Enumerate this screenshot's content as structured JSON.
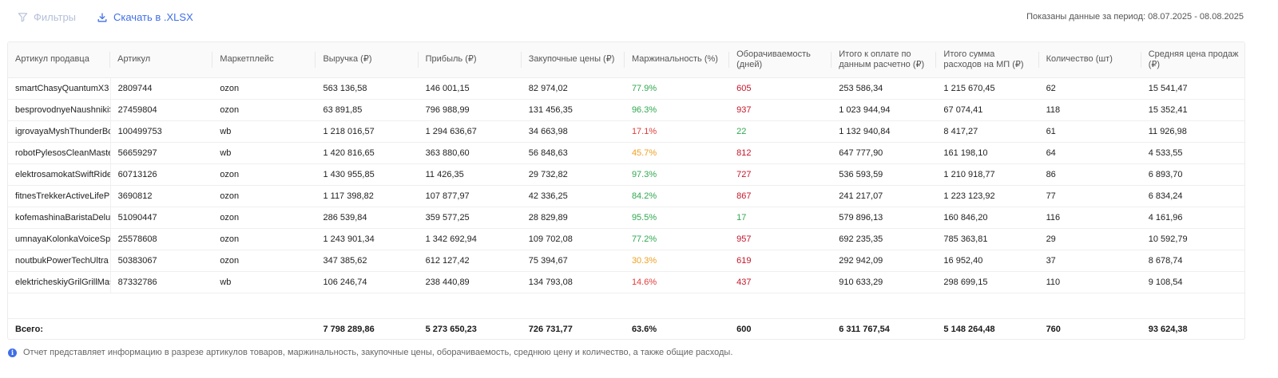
{
  "toolbar": {
    "filters_label": "Фильтры",
    "download_label": "Скачать в .XLSX",
    "period_text": "Показаны данные за период: 08.07.2025 - 08.08.2025"
  },
  "table": {
    "headers": [
      "Артикул продавца",
      "Артикул",
      "Маркетплейс",
      "Выручка (₽)",
      "Прибыль (₽)",
      "Закупочные цены (₽)",
      "Маржинальность (%)",
      "Оборачиваемость (дней)",
      "Итого к оплате по данным расчетно (₽)",
      "Итого сумма расходов на МП (₽)",
      "Количество (шт)",
      "Средняя цена продаж (₽)"
    ],
    "rows": [
      [
        "smartChasyQuantumX3",
        "2809744",
        "ozon",
        "563 136,58",
        "146 001,15",
        "82 974,02",
        "77.9%",
        "605",
        "253 586,34",
        "1 215 670,45",
        "62",
        "15 541,47"
      ],
      [
        "besprovodnyeNaushnikiSonic",
        "27459804",
        "ozon",
        "63 891,85",
        "796 988,99",
        "131 456,35",
        "96.3%",
        "937",
        "1 023 944,94",
        "67 074,41",
        "118",
        "15 352,41"
      ],
      [
        "igrovayaMyshThunderBolt",
        "100499753",
        "wb",
        "1 218 016,57",
        "1 294 636,67",
        "34 663,98",
        "17.1%",
        "22",
        "1 132 940,84",
        "8 417,27",
        "61",
        "11 926,98"
      ],
      [
        "robotPylesosCleanMaster",
        "56659297",
        "wb",
        "1 420 816,65",
        "363 880,60",
        "56 848,63",
        "45.7%",
        "812",
        "647 777,90",
        "161 198,10",
        "64",
        "4 533,55"
      ],
      [
        "elektrosamokatSwiftRider",
        "60713126",
        "ozon",
        "1 430 955,85",
        "11 426,35",
        "29 732,82",
        "97.3%",
        "727",
        "536 593,59",
        "1 210 918,77",
        "86",
        "6 893,70"
      ],
      [
        "fitnesTrekkerActiveLifePlus",
        "3690812",
        "ozon",
        "1 117 398,82",
        "107 877,97",
        "42 336,25",
        "84.2%",
        "867",
        "241 217,07",
        "1 223 123,92",
        "77",
        "6 834,24"
      ],
      [
        "kofemashinaBaristaDeluxe",
        "51090447",
        "ozon",
        "286 539,84",
        "359 577,25",
        "28 829,89",
        "95.5%",
        "17",
        "579 896,13",
        "160 846,20",
        "116",
        "4 161,96"
      ],
      [
        "umnayaKolonkaVoiceSphere",
        "25578608",
        "ozon",
        "1 243 901,34",
        "1 342 692,94",
        "109 702,08",
        "77.2%",
        "957",
        "692 235,35",
        "785 363,81",
        "29",
        "10 592,79"
      ],
      [
        "noutbukPowerTechUltra",
        "50383067",
        "ozon",
        "347 385,62",
        "612 127,42",
        "75 394,67",
        "30.3%",
        "619",
        "292 942,09",
        "16 952,40",
        "37",
        "8 678,74"
      ],
      [
        "elektricheskiyGrilGrillMaster",
        "87332786",
        "wb",
        "106 246,74",
        "238 440,89",
        "134 793,08",
        "14.6%",
        "437",
        "910 633,29",
        "298 699,15",
        "110",
        "9 108,54"
      ]
    ],
    "margin_classes": [
      "g",
      "g",
      "r",
      "o",
      "g",
      "g",
      "g",
      "g",
      "o",
      "r"
    ],
    "turnover_classes": [
      "dr",
      "dr",
      "g",
      "dr",
      "dr",
      "dr",
      "g",
      "dr",
      "dr",
      "dr"
    ],
    "totals": {
      "label": "Всего:",
      "values": [
        "",
        "",
        "7 798 289,86",
        "5 273 650,23",
        "726 731,77",
        "63.6%",
        "600",
        "6 311 767,54",
        "5 148 264,48",
        "760",
        "93 624,38"
      ]
    }
  },
  "footer": {
    "note": "Отчет представляет информацию в разрезе артикулов товаров, маржинальность, закупочные цены, оборачиваемость, среднюю цену и количество, а также общие расходы."
  },
  "colors": {
    "accent": "#3f6fe8",
    "positive": "#2fa84f",
    "negative": "#e33b3b",
    "warning": "#f0a020"
  }
}
